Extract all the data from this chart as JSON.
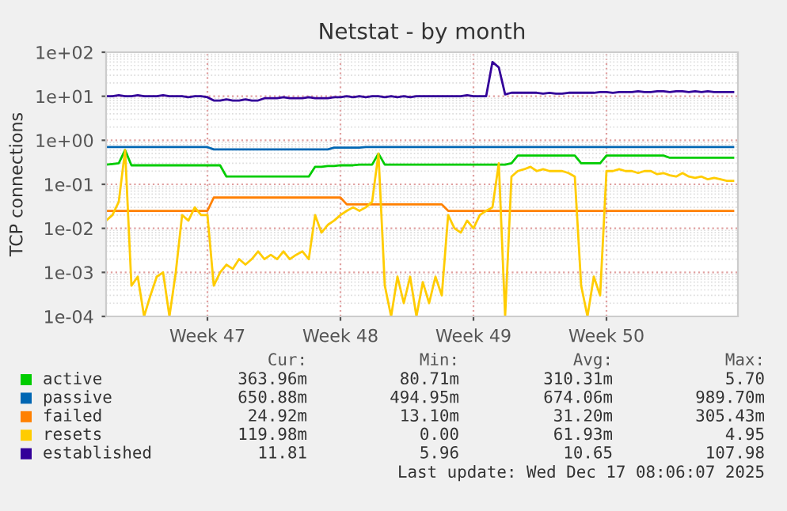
{
  "chart_data": {
    "type": "line",
    "title": "Netstat - by month",
    "ylabel": "TCP connections",
    "log": "y",
    "grid": true,
    "legend": "bottom",
    "marker": "none",
    "line_style": "solid",
    "categories": [
      null,
      null,
      null,
      null,
      null,
      null,
      null,
      null,
      null,
      null,
      null,
      null,
      null,
      null,
      null,
      null,
      "Week 47",
      null,
      null,
      null,
      null,
      null,
      null,
      null,
      null,
      null,
      null,
      null,
      null,
      null,
      null,
      null,
      null,
      null,
      null,
      null,
      null,
      "Week 48",
      null,
      null,
      null,
      null,
      null,
      null,
      null,
      null,
      null,
      null,
      null,
      null,
      null,
      null,
      null,
      null,
      null,
      null,
      null,
      null,
      "Week 49",
      null,
      null,
      null,
      null,
      null,
      null,
      null,
      null,
      null,
      null,
      null,
      null,
      null,
      null,
      null,
      null,
      null,
      null,
      null,
      null,
      "Week 50",
      null,
      null,
      null,
      null,
      null,
      null,
      null,
      null,
      null,
      null,
      null,
      null,
      null,
      null,
      null,
      null,
      null,
      null,
      null,
      null
    ],
    "ylim": [
      0.0001,
      100
    ],
    "yticks": [
      {
        "value": 0.0001,
        "label": "1e-04"
      },
      {
        "value": 0.001,
        "label": "1e-03"
      },
      {
        "value": 0.01,
        "label": "1e-02"
      },
      {
        "value": 0.1,
        "label": "1e-01"
      },
      {
        "value": 1,
        "label": "1e+00"
      },
      {
        "value": 10,
        "label": "1e+01"
      },
      {
        "value": 100,
        "label": "1e+02"
      }
    ],
    "series": [
      {
        "name": "active",
        "color": "#00cc00",
        "values": [
          0.28,
          0.29,
          0.3,
          0.6,
          0.27,
          0.27,
          0.27,
          0.27,
          0.27,
          0.27,
          0.27,
          0.27,
          0.27,
          0.27,
          0.27,
          0.27,
          0.27,
          0.27,
          0.27,
          0.15,
          0.15,
          0.15,
          0.15,
          0.15,
          0.15,
          0.15,
          0.15,
          0.15,
          0.15,
          0.15,
          0.15,
          0.15,
          0.15,
          0.25,
          0.25,
          0.26,
          0.26,
          0.27,
          0.27,
          0.27,
          0.28,
          0.28,
          0.28,
          0.5,
          0.28,
          0.28,
          0.28,
          0.28,
          0.28,
          0.28,
          0.28,
          0.28,
          0.28,
          0.28,
          0.28,
          0.28,
          0.28,
          0.28,
          0.28,
          0.28,
          0.28,
          0.28,
          0.28,
          0.28,
          0.3,
          0.45,
          0.45,
          0.45,
          0.45,
          0.45,
          0.45,
          0.45,
          0.45,
          0.45,
          0.45,
          0.3,
          0.3,
          0.3,
          0.3,
          0.45,
          0.45,
          0.45,
          0.45,
          0.45,
          0.45,
          0.45,
          0.45,
          0.45,
          0.45,
          0.4,
          0.4,
          0.4,
          0.4,
          0.4,
          0.4,
          0.4,
          0.4,
          0.4,
          0.4,
          0.4
        ]
      },
      {
        "name": "passive",
        "color": "#0066b3",
        "values": [
          0.7,
          0.7,
          0.7,
          0.7,
          0.7,
          0.7,
          0.7,
          0.7,
          0.7,
          0.7,
          0.7,
          0.7,
          0.7,
          0.7,
          0.7,
          0.7,
          0.7,
          0.62,
          0.62,
          0.62,
          0.62,
          0.62,
          0.62,
          0.62,
          0.62,
          0.62,
          0.62,
          0.62,
          0.62,
          0.62,
          0.62,
          0.62,
          0.62,
          0.62,
          0.62,
          0.62,
          0.68,
          0.68,
          0.68,
          0.68,
          0.68,
          0.7,
          0.7,
          0.7,
          0.7,
          0.7,
          0.7,
          0.7,
          0.7,
          0.7,
          0.7,
          0.7,
          0.7,
          0.7,
          0.7,
          0.7,
          0.7,
          0.7,
          0.7,
          0.7,
          0.7,
          0.7,
          0.7,
          0.7,
          0.7,
          0.7,
          0.7,
          0.7,
          0.7,
          0.7,
          0.7,
          0.7,
          0.7,
          0.7,
          0.7,
          0.7,
          0.7,
          0.7,
          0.7,
          0.7,
          0.7,
          0.7,
          0.7,
          0.7,
          0.7,
          0.7,
          0.7,
          0.7,
          0.7,
          0.7,
          0.7,
          0.7,
          0.7,
          0.7,
          0.7,
          0.7,
          0.7,
          0.7,
          0.7,
          0.7
        ]
      },
      {
        "name": "failed",
        "color": "#ff8000",
        "values": [
          0.025,
          0.025,
          0.025,
          0.025,
          0.025,
          0.025,
          0.025,
          0.025,
          0.025,
          0.025,
          0.025,
          0.025,
          0.025,
          0.025,
          0.025,
          0.025,
          0.025,
          0.05,
          0.05,
          0.05,
          0.05,
          0.05,
          0.05,
          0.05,
          0.05,
          0.05,
          0.05,
          0.05,
          0.05,
          0.05,
          0.05,
          0.05,
          0.05,
          0.05,
          0.05,
          0.05,
          0.05,
          0.05,
          0.035,
          0.035,
          0.035,
          0.035,
          0.035,
          0.035,
          0.035,
          0.035,
          0.035,
          0.035,
          0.035,
          0.035,
          0.035,
          0.035,
          0.035,
          0.035,
          0.025,
          0.025,
          0.025,
          0.025,
          0.025,
          0.025,
          0.025,
          0.025,
          0.025,
          0.025,
          0.025,
          0.025,
          0.025,
          0.025,
          0.025,
          0.025,
          0.025,
          0.025,
          0.025,
          0.025,
          0.025,
          0.025,
          0.025,
          0.025,
          0.025,
          0.025,
          0.025,
          0.025,
          0.025,
          0.025,
          0.025,
          0.025,
          0.025,
          0.025,
          0.025,
          0.025,
          0.025,
          0.025,
          0.025,
          0.025,
          0.025,
          0.025,
          0.025,
          0.025,
          0.025,
          0.025
        ]
      },
      {
        "name": "resets",
        "color": "#ffcc00",
        "values": [
          0.015,
          0.02,
          0.04,
          0.6,
          0.0005,
          0.0008,
          0.0001,
          0.0003,
          0.0008,
          0.001,
          0.0001,
          0.001,
          0.02,
          0.015,
          0.03,
          0.02,
          0.02,
          0.0005,
          0.001,
          0.0015,
          0.0012,
          0.002,
          0.0015,
          0.002,
          0.003,
          0.002,
          0.0025,
          0.002,
          0.003,
          0.002,
          0.0025,
          0.003,
          0.002,
          0.02,
          0.008,
          0.012,
          0.015,
          0.02,
          0.025,
          0.03,
          0.025,
          0.03,
          0.04,
          0.5,
          0.0005,
          0.0001,
          0.0008,
          0.0002,
          0.0008,
          0.0001,
          0.0006,
          0.0002,
          0.0008,
          0.0003,
          0.02,
          0.01,
          0.008,
          0.015,
          0.01,
          0.02,
          0.025,
          0.03,
          0.3,
          0.0001,
          0.15,
          0.2,
          0.22,
          0.25,
          0.2,
          0.22,
          0.2,
          0.2,
          0.2,
          0.18,
          0.15,
          0.0005,
          0.0001,
          0.0008,
          0.0003,
          0.2,
          0.2,
          0.22,
          0.2,
          0.2,
          0.18,
          0.2,
          0.2,
          0.17,
          0.18,
          0.16,
          0.15,
          0.18,
          0.15,
          0.14,
          0.15,
          0.13,
          0.14,
          0.13,
          0.12,
          0.12
        ]
      },
      {
        "name": "established",
        "color": "#330099",
        "values": [
          10,
          10,
          10.5,
          10,
          10,
          10.5,
          10,
          10,
          10,
          10.5,
          10,
          10,
          10,
          9.5,
          10,
          10,
          9.5,
          8,
          8,
          8.5,
          8,
          8,
          8.5,
          8,
          8,
          9,
          9,
          9,
          9.5,
          9,
          9,
          9,
          9.5,
          9,
          9,
          9,
          9.5,
          9.5,
          10,
          9.5,
          10,
          9.5,
          10,
          10,
          9.5,
          10,
          9.5,
          10,
          9.5,
          10,
          10,
          10,
          10,
          10,
          10,
          10,
          10,
          10.5,
          10,
          10,
          10,
          60,
          45,
          11,
          12,
          12,
          12,
          12,
          12,
          11.5,
          12,
          11.5,
          11.5,
          12,
          12,
          12,
          12,
          12,
          12.5,
          12.5,
          12,
          12.5,
          12.5,
          12.5,
          13,
          12.5,
          12.5,
          13,
          13,
          12.5,
          13,
          13,
          12.5,
          13,
          12.5,
          13,
          12.5,
          12.5,
          12.5,
          12.5
        ]
      }
    ],
    "annotations": [
      "Cur:",
      "Min:",
      "Avg:",
      "Max:",
      "363.96m",
      "80.71m",
      "310.31m",
      "5.70",
      "650.88m",
      "494.95m",
      "674.06m",
      "989.70m",
      "24.92m",
      "13.10m",
      "31.20m",
      "305.43m",
      "119.98m",
      "0.00",
      "61.93m",
      "4.95",
      "11.81",
      "5.96",
      "10.65",
      "107.98",
      "Last update: Wed Dec 17 08:06:07 2025"
    ]
  }
}
